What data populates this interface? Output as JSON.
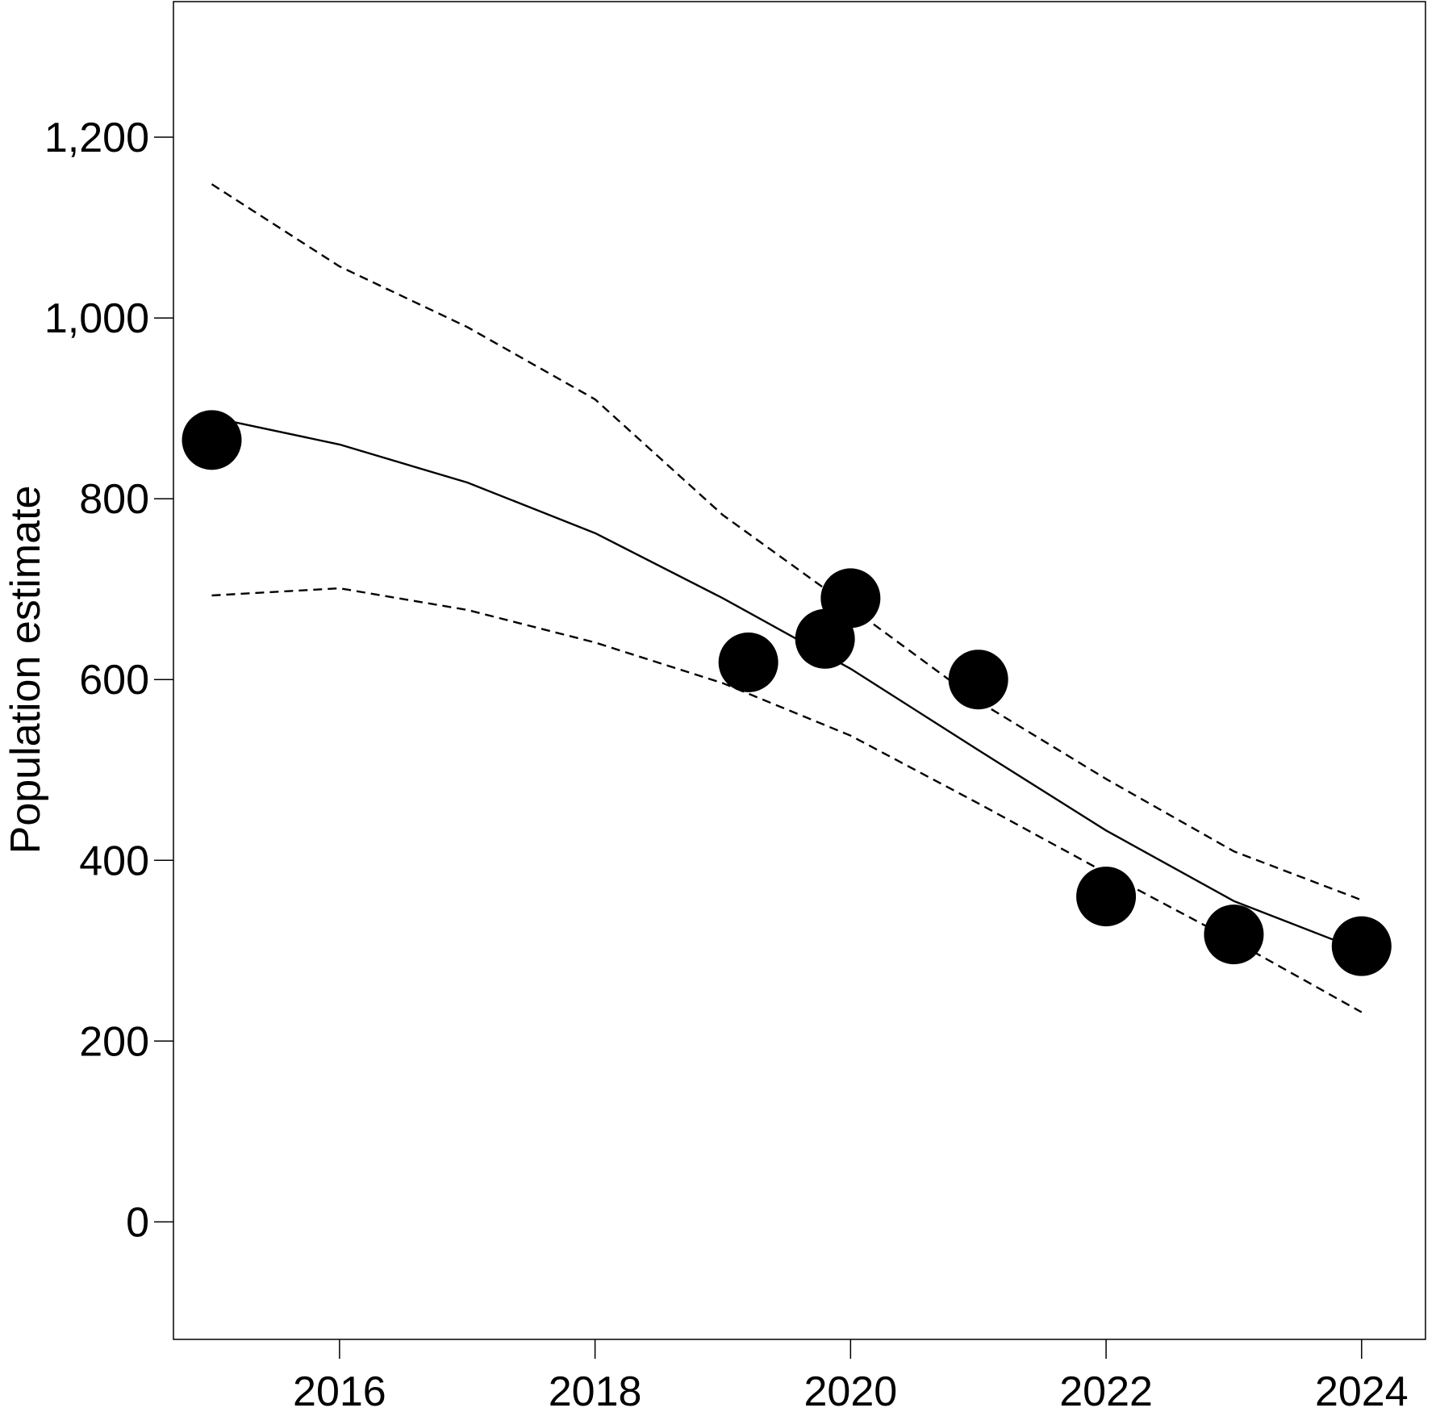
{
  "chart_data": {
    "type": "line",
    "title": "",
    "xlabel": "",
    "ylabel": "Population estimate",
    "xlim": [
      2014.7,
      2024.5
    ],
    "ylim": [
      -130,
      1350
    ],
    "x_ticks": [
      2016,
      2018,
      2020,
      2022,
      2024
    ],
    "x_tick_labels": [
      "2016",
      "2018",
      "2020",
      "2022",
      "2024"
    ],
    "y_ticks": [
      0,
      200,
      400,
      600,
      800,
      1000,
      1200
    ],
    "y_tick_labels": [
      "0",
      "200",
      "400",
      "600",
      "800",
      "1,000",
      "1,200"
    ],
    "grid": false,
    "legend": "none",
    "series": [
      {
        "style": "solid",
        "x": [
          2015,
          2016,
          2017,
          2018,
          2019,
          2020,
          2021,
          2022,
          2023,
          2024
        ],
        "y": [
          890,
          860,
          818,
          762,
          690,
          612,
          522,
          433,
          355,
          300
        ]
      },
      {
        "style": "dashed",
        "x": [
          2015,
          2016,
          2017,
          2018,
          2019,
          2020,
          2021,
          2022,
          2023,
          2024
        ],
        "y": [
          1148,
          1057,
          990,
          910,
          782,
          680,
          576,
          490,
          410,
          356
        ]
      },
      {
        "style": "dashed",
        "x": [
          2015,
          2016,
          2017,
          2018,
          2019,
          2020,
          2021,
          2022,
          2023,
          2024
        ],
        "y": [
          693,
          701,
          677,
          641,
          596,
          538,
          463,
          386,
          311,
          232
        ]
      },
      {
        "style": "points",
        "x": [
          2015,
          2019.2,
          2019.8,
          2020,
          2021,
          2022,
          2023,
          2024
        ],
        "y": [
          865,
          619,
          645,
          690,
          600,
          360,
          318,
          305
        ]
      }
    ]
  },
  "colors": {
    "line": "#000000",
    "points": "#000000",
    "background": "#ffffff"
  }
}
